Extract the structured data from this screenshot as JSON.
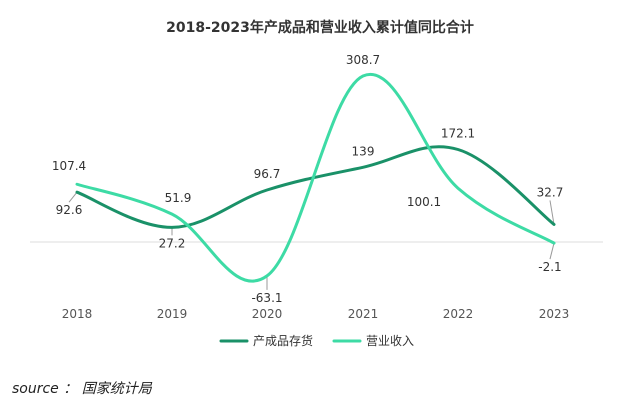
{
  "chart_data": {
    "type": "line",
    "title": "2018-2023年产成品和营业收入累计值同比合计",
    "categories": [
      "2018",
      "2019",
      "2020",
      "2021",
      "2022",
      "2023"
    ],
    "series": [
      {
        "name": "产成品存货",
        "color": "#1a9168",
        "values": [
          92.6,
          27.2,
          96.7,
          139,
          172.1,
          32.7
        ],
        "labels": [
          "92.6",
          "27.2",
          "96.7",
          "139",
          "172.1",
          "32.7"
        ]
      },
      {
        "name": "营业收入",
        "color": "#3ddba5",
        "values": [
          107.4,
          51.9,
          -63.1,
          308.7,
          100.1,
          -2.1
        ],
        "labels": [
          "107.4",
          "51.9",
          "-63.1",
          "308.7",
          "100.1",
          "-2.1"
        ]
      }
    ],
    "ylim": [
      -100,
      350
    ],
    "grid": false,
    "legend": "bottom"
  },
  "source": "source ： 国家统计局"
}
